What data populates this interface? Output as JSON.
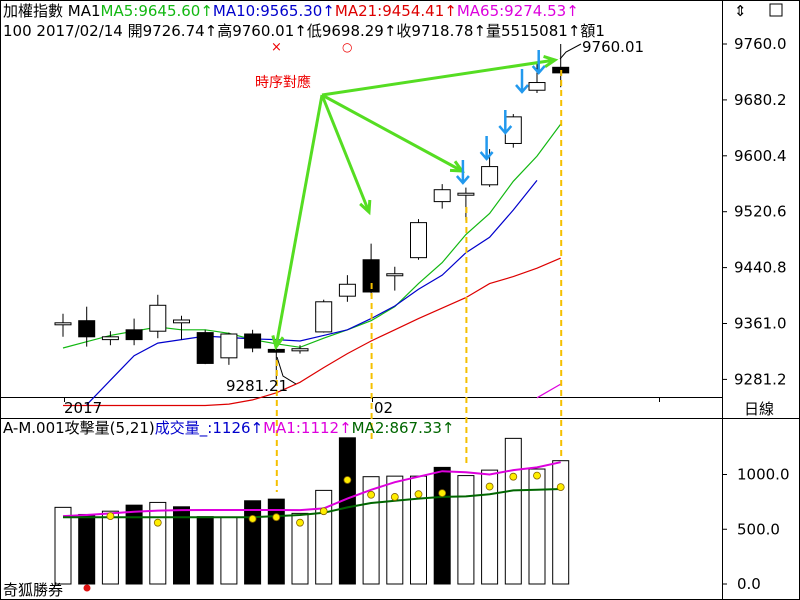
{
  "header": {
    "line1": [
      {
        "text": "加權指數 MA1",
        "color": "#000000"
      },
      {
        "text": "MA5:9645.60↑",
        "color": "#12b812"
      },
      {
        "text": "MA10:9565.30↑",
        "color": "#0000cc"
      },
      {
        "text": "MA21:9454.41↑",
        "color": "#dd0000"
      },
      {
        "text": "MA65:9274.53↑",
        "color": "#dd00dd"
      }
    ],
    "line2": "100 2017/02/14 開9726.74↑高9760.01↑低9698.29↑收9718.78↑量5515081↑額1"
  },
  "lower_header": [
    {
      "text": "A-M.001攻擊量(5,21)",
      "color": "#000000"
    },
    {
      "text": "成交量_:1126↑",
      "color": "#0000cc"
    },
    {
      "text": "MA1:1112↑",
      "color": "#dd00dd"
    },
    {
      "text": "MA2:867.33↑",
      "color": "#006600"
    }
  ],
  "right_panel_label": "日線",
  "watermark": "奇狐勝券",
  "annotation": {
    "text": "時序對應",
    "color": "#ee0000"
  },
  "upper_markers": [
    "×",
    "○"
  ],
  "price_labels": {
    "high": "9760.01",
    "low": "9281.21"
  },
  "x_labels": [
    "2017",
    "02"
  ],
  "colors": {
    "up_candle": "#ffffff",
    "down_candle": "#000000",
    "arrow_green": "#55dd22",
    "arrow_blue": "#2299ee",
    "guide_yellow": "#f5c000"
  },
  "chart_data": [
    {
      "type": "candlestick",
      "title": "加權指數",
      "y_ticks": [
        9281.2,
        9361.0,
        9440.8,
        9520.6,
        9600.4,
        9680.2,
        9760.0
      ],
      "ylim": [
        9235,
        9800
      ],
      "candles": [
        {
          "o": 9362,
          "h": 9375,
          "l": 9342,
          "c": 9362
        },
        {
          "o": 9365,
          "h": 9385,
          "l": 9328,
          "c": 9342
        },
        {
          "o": 9338,
          "h": 9350,
          "l": 9330,
          "c": 9342
        },
        {
          "o": 9352,
          "h": 9368,
          "l": 9330,
          "c": 9338
        },
        {
          "o": 9350,
          "h": 9402,
          "l": 9340,
          "c": 9387
        },
        {
          "o": 9362,
          "h": 9372,
          "l": 9338,
          "c": 9366
        },
        {
          "o": 9348,
          "h": 9352,
          "l": 9303,
          "c": 9304
        },
        {
          "o": 9312,
          "h": 9348,
          "l": 9302,
          "c": 9346
        },
        {
          "o": 9346,
          "h": 9352,
          "l": 9320,
          "c": 9326
        },
        {
          "o": 9324,
          "h": 9330,
          "l": 9281.21,
          "c": 9320
        },
        {
          "o": 9322,
          "h": 9330,
          "l": 9318,
          "c": 9325
        },
        {
          "o": 9349,
          "h": 9395,
          "l": 9348,
          "c": 9392
        },
        {
          "o": 9400,
          "h": 9430,
          "l": 9392,
          "c": 9417
        },
        {
          "o": 9452,
          "h": 9475,
          "l": 9400,
          "c": 9406
        },
        {
          "o": 9430,
          "h": 9442,
          "l": 9408,
          "c": 9432
        },
        {
          "o": 9455,
          "h": 9510,
          "l": 9452,
          "c": 9505
        },
        {
          "o": 9535,
          "h": 9560,
          "l": 9525,
          "c": 9552
        },
        {
          "o": 9547,
          "h": 9555,
          "l": 9508,
          "c": 9547
        },
        {
          "o": 9559,
          "h": 9610,
          "l": 9556,
          "c": 9585
        },
        {
          "o": 9618,
          "h": 9660,
          "l": 9612,
          "c": 9656
        },
        {
          "o": 9694,
          "h": 9732,
          "l": 9690,
          "c": 9705
        },
        {
          "o": 9726.74,
          "h": 9760.01,
          "l": 9698.29,
          "c": 9718.78
        }
      ],
      "ma_lines": [
        {
          "name": "MA5",
          "color": "#12b812",
          "start": 0,
          "values": [
            9326,
            9335,
            9344,
            9350,
            9356,
            9352,
            9352,
            9347,
            9338,
            9332,
            9327,
            9340,
            9352,
            9365,
            9385,
            9418,
            9448,
            9488,
            9518,
            9564,
            9600,
            9645.6
          ]
        },
        {
          "name": "MA10",
          "color": "#0000cc",
          "start": 1,
          "values": [
            9245,
            9280,
            9315,
            9333,
            9338,
            9343,
            9341,
            9339,
            9338,
            9336,
            9344,
            9352,
            9368,
            9386,
            9410,
            9430,
            9462,
            9484,
            9523,
            9565.3
          ]
        },
        {
          "name": "MA21",
          "color": "#dd0000",
          "start": 0,
          "values": [
            9244,
            9244,
            9244,
            9244,
            9244,
            9244,
            9244,
            9246,
            9252,
            9262,
            9277,
            9298,
            9318,
            9336,
            9352,
            9368,
            9383,
            9398,
            9418,
            9428,
            9440,
            9454.41
          ]
        },
        {
          "name": "MA65",
          "color": "#dd00dd",
          "start": 20,
          "values": [
            9255,
            9274.53
          ]
        }
      ]
    },
    {
      "type": "bar",
      "title": "A-M.001攻擊量(5,21)",
      "y_ticks": [
        0.0,
        500.0,
        1000.0
      ],
      "ylim": [
        0,
        1380
      ],
      "volumes": [
        {
          "v": 700,
          "up": true
        },
        {
          "v": 635,
          "up": false
        },
        {
          "v": 665,
          "up": true
        },
        {
          "v": 720,
          "up": false
        },
        {
          "v": 745,
          "up": true
        },
        {
          "v": 705,
          "up": false
        },
        {
          "v": 615,
          "up": false
        },
        {
          "v": 610,
          "up": true
        },
        {
          "v": 760,
          "up": false
        },
        {
          "v": 775,
          "up": false
        },
        {
          "v": 645,
          "up": true
        },
        {
          "v": 855,
          "up": true
        },
        {
          "v": 1335,
          "up": false
        },
        {
          "v": 980,
          "up": true
        },
        {
          "v": 985,
          "up": true
        },
        {
          "v": 985,
          "up": true
        },
        {
          "v": 1065,
          "up": false
        },
        {
          "v": 990,
          "up": true
        },
        {
          "v": 1040,
          "up": true
        },
        {
          "v": 1330,
          "up": true
        },
        {
          "v": 1050,
          "up": true
        },
        {
          "v": 1126,
          "up": true
        }
      ],
      "dots": [
        null,
        null,
        620,
        null,
        560,
        null,
        null,
        null,
        595,
        610,
        560,
        665,
        950,
        815,
        795,
        820,
        830,
        null,
        890,
        980,
        990,
        885
      ],
      "ma_lines": [
        {
          "name": "MA1",
          "color": "#dd00dd",
          "values": [
            620,
            630,
            645,
            660,
            670,
            675,
            676,
            676,
            676,
            676,
            675,
            690,
            780,
            860,
            930,
            980,
            1030,
            1020,
            1000,
            1040,
            1065,
            1112
          ]
        },
        {
          "name": "MA2",
          "color": "#006600",
          "values": [
            610,
            610,
            610,
            610,
            610,
            610,
            610,
            610,
            610,
            620,
            630,
            650,
            700,
            740,
            760,
            780,
            795,
            800,
            820,
            855,
            860,
            867.33
          ]
        }
      ]
    }
  ]
}
